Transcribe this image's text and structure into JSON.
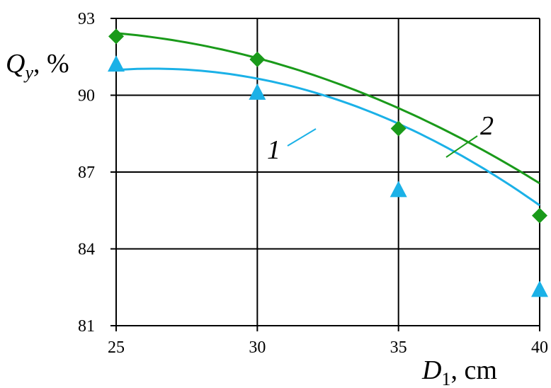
{
  "chart_data": {
    "type": "scatter",
    "title": "",
    "xlabel": {
      "symbol": "D",
      "sub": "1",
      "unit": ", cm"
    },
    "ylabel": {
      "symbol": "Q",
      "sub": "y",
      "unit": ", %"
    },
    "xlim": [
      25,
      40
    ],
    "ylim": [
      81,
      93
    ],
    "xticks": [
      "25",
      "30",
      "35",
      "40"
    ],
    "yticks": [
      "81",
      "84",
      "87",
      "90",
      "93"
    ],
    "grid": true,
    "series": [
      {
        "name": "1",
        "marker": "triangle",
        "color": "#1bb1e7",
        "x": [
          25,
          30,
          35,
          40
        ],
        "y": [
          91.2,
          90.1,
          86.3,
          82.4
        ],
        "fit": [
          -0.0285,
          1.5,
          71.3
        ]
      },
      {
        "name": "2",
        "marker": "diamond",
        "color": "#1a9a1a",
        "x": [
          25,
          30,
          35,
          40
        ],
        "y": [
          92.3,
          91.4,
          88.7,
          85.3
        ],
        "fit": [
          -0.0196,
          0.883,
          82.6
        ]
      }
    ]
  }
}
